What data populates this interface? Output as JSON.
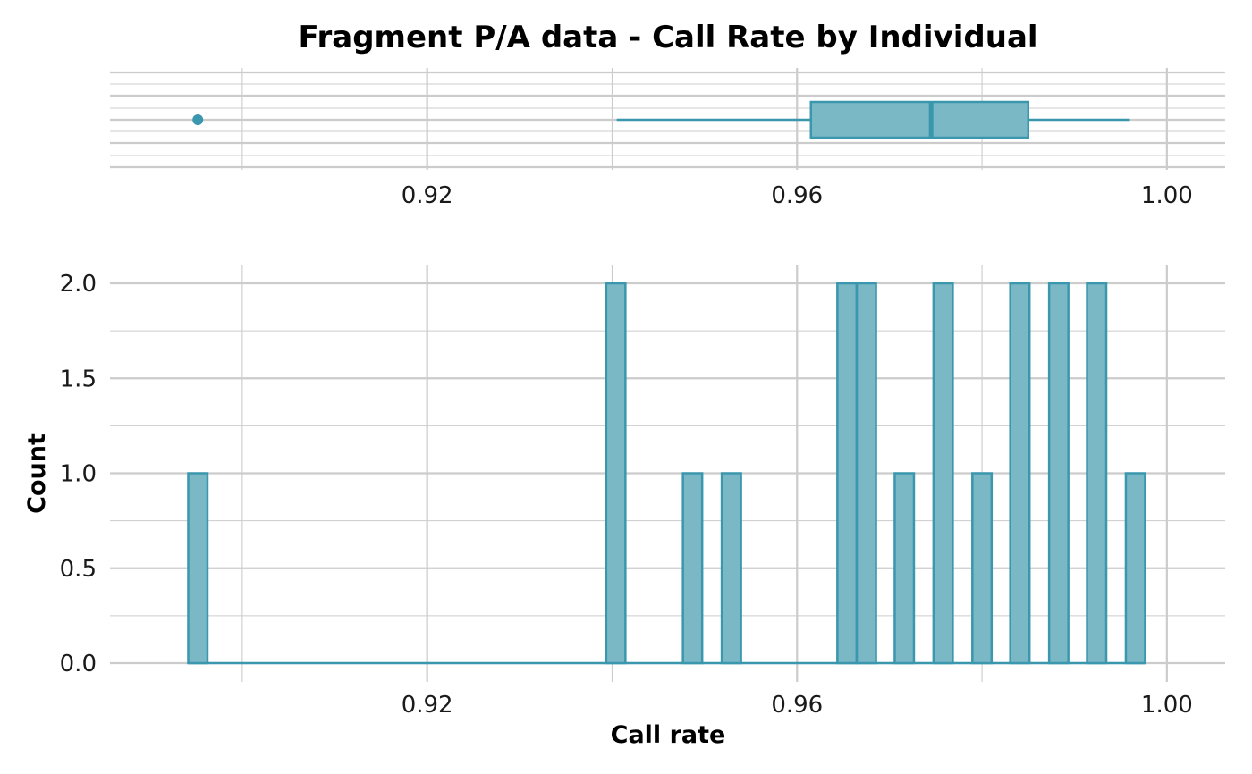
{
  "title": "Fragment P/A data - Call Rate by Individual",
  "colors": {
    "fill": "#7ab8c6",
    "stroke": "#3a97ad",
    "grid": "#cccccc",
    "background": "#ffffff"
  },
  "chart_data": [
    {
      "type": "boxplot",
      "title": "Fragment P/A data - Call Rate by Individual",
      "xlabel": "",
      "ylabel": "",
      "xlim": [
        0.8857,
        1.0063
      ],
      "xticks": [
        {
          "value": 0.92,
          "label": "0.92"
        },
        {
          "value": 0.96,
          "label": "0.96"
        },
        {
          "value": 1.0,
          "label": "1.00"
        }
      ],
      "whisker_low": 0.9405,
      "q1": 0.9615,
      "median": 0.9745,
      "q3": 0.985,
      "whisker_high": 0.996,
      "outliers": [
        0.8952
      ],
      "grid": true
    },
    {
      "type": "histogram",
      "title": "",
      "xlabel": "Call rate",
      "ylabel": "Count",
      "xlim": [
        0.8857,
        1.0063
      ],
      "ylim": [
        0,
        2.1
      ],
      "xticks": [
        {
          "value": 0.92,
          "label": "0.92"
        },
        {
          "value": 0.96,
          "label": "0.96"
        },
        {
          "value": 1.0,
          "label": "1.00"
        }
      ],
      "yticks": [
        {
          "value": 0.0,
          "label": "0.0"
        },
        {
          "value": 0.5,
          "label": "0.5"
        },
        {
          "value": 1.0,
          "label": "1.0"
        },
        {
          "value": 1.5,
          "label": "1.5"
        },
        {
          "value": 2.0,
          "label": "2.0"
        }
      ],
      "bin_width": 0.00208,
      "bins": [
        {
          "x": 0.8952,
          "count": 1
        },
        {
          "x": 0.9404,
          "count": 2
        },
        {
          "x": 0.9487,
          "count": 1
        },
        {
          "x": 0.9529,
          "count": 1
        },
        {
          "x": 0.9654,
          "count": 2
        },
        {
          "x": 0.9675,
          "count": 2
        },
        {
          "x": 0.9716,
          "count": 1
        },
        {
          "x": 0.9758,
          "count": 2
        },
        {
          "x": 0.98,
          "count": 1
        },
        {
          "x": 0.9841,
          "count": 2
        },
        {
          "x": 0.9883,
          "count": 2
        },
        {
          "x": 0.9924,
          "count": 2
        },
        {
          "x": 0.9966,
          "count": 1
        }
      ],
      "grid": true
    }
  ]
}
